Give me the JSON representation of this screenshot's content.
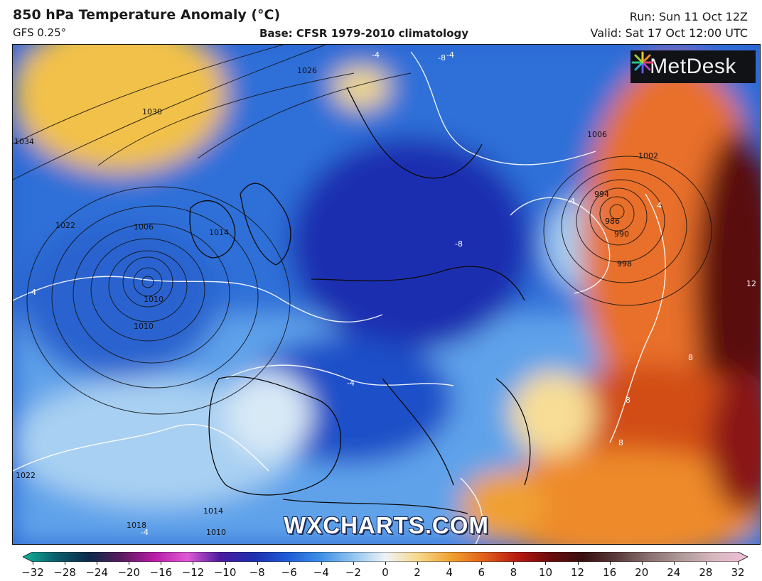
{
  "header": {
    "title": "850 hPa Temperature Anomaly (°C)",
    "model": "GFS 0.25°",
    "base": "Base: CFSR 1979-2010 climatology",
    "run": "Run: Sun 11 Oct 12Z",
    "valid": "Valid: Sat 17 Oct 12:00 UTC"
  },
  "branding": {
    "logo_text": "MetDesk",
    "logo_icon": "metdesk-burst-icon",
    "watermark": "WXCHARTS.COM"
  },
  "map": {
    "region": "Europe and North Atlantic",
    "isobar_labels": [
      "1034",
      "1030",
      "1026",
      "1022",
      "1018",
      "1014",
      "1010",
      "1006",
      "1002",
      "998",
      "994",
      "990",
      "986",
      "1022",
      "1018",
      "1014",
      "1010",
      "1006",
      "1010"
    ],
    "anomaly_labels": [
      "-4",
      "-4",
      "-4",
      "-4",
      "-4",
      "-4",
      "-8",
      "-8",
      "4",
      "8",
      "8",
      "8",
      "12",
      "-4"
    ]
  },
  "colorbar": {
    "ticks": [
      "−32",
      "−28",
      "−24",
      "−20",
      "−16",
      "−12",
      "−10",
      "−8",
      "−6",
      "−4",
      "−2",
      "0",
      "2",
      "4",
      "6",
      "8",
      "10",
      "12",
      "16",
      "20",
      "24",
      "28",
      "32"
    ],
    "colors": [
      "#0fb39a",
      "#0b5e6b",
      "#0b2a4a",
      "#5b1a5e",
      "#b81ca8",
      "#e05ad6",
      "#4a1a9e",
      "#1d2fb0",
      "#1f5ad6",
      "#3a8ee6",
      "#8fc4f0",
      "#eef3f7",
      "#f5d98a",
      "#f0a030",
      "#e0601a",
      "#b81a10",
      "#6a0c0c",
      "#3a1010",
      "#5a3a3a",
      "#8a7070",
      "#b09a9a",
      "#d8b8c0",
      "#f0c0d8"
    ]
  }
}
